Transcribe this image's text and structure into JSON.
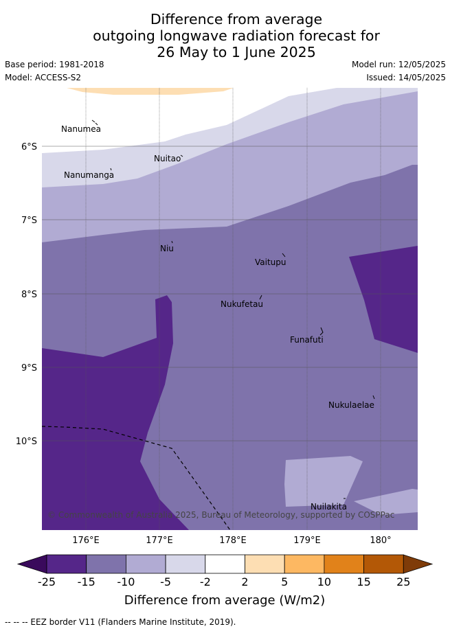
{
  "title": {
    "line1": "Difference from average",
    "line2": "outgoing longwave radiation forecast for",
    "line3": "26 May to 1 June 2025"
  },
  "meta": {
    "base_period": "Base period: 1981-2018",
    "model": "Model: ACCESS-S2",
    "model_run": "Model run: 12/05/2025",
    "issued": "Issued: 14/05/2025"
  },
  "map": {
    "lat_labels": [
      "6°S",
      "7°S",
      "8°S",
      "9°S",
      "10°S"
    ],
    "lon_labels": [
      "176°E",
      "177°E",
      "178°E",
      "179°E",
      "180°"
    ],
    "places": [
      "Nanumea",
      "Nuitao",
      "Nanumanga",
      "Niu",
      "Vaitupu",
      "Nukufetau",
      "Funafuti",
      "Nukulaelae",
      "Nuilakita"
    ],
    "copyright": "© Commonwealth of Australia 2025, Bureau of Meteorology, supported by COSPPac"
  },
  "legend": {
    "ticks": [
      "-25",
      "-15",
      "-10",
      "-5",
      "-2",
      "2",
      "5",
      "10",
      "15",
      "25"
    ],
    "colors": [
      "#3a0a5c",
      "#552689",
      "#7f73ab",
      "#b1abd3",
      "#d8d8ea",
      "#ffffff",
      "#fddeb3",
      "#fdb862",
      "#e1821a",
      "#b35806",
      "#7f3b08"
    ],
    "label": "Difference from average (W/m2)"
  },
  "footer": "--  --  -- EEZ border V11 (Flanders Marine Institute, 2019)."
}
